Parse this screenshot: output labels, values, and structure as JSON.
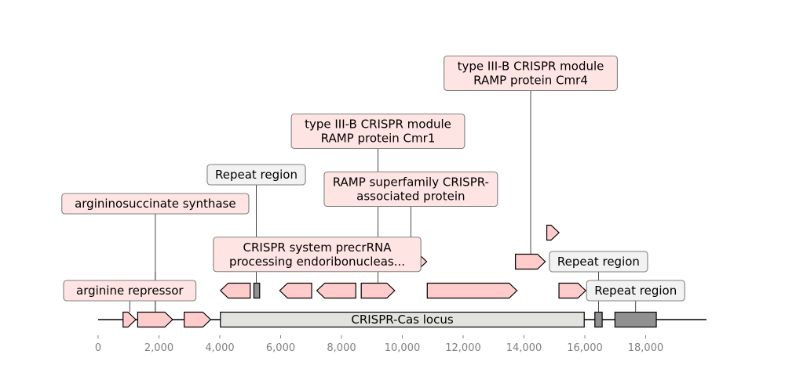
{
  "figure": {
    "locus_label": "CRISPR-Cas locus",
    "axis": {
      "min": 0,
      "max": 20000,
      "tick_values": [
        0,
        2000,
        4000,
        6000,
        8000,
        10000,
        12000,
        14000,
        16000,
        18000
      ]
    },
    "colors": {
      "cds_fill": "#ffcccc",
      "locus_fill": "#e2e2de",
      "repeat_fill": "#909090",
      "cds_label_bg": "#ffe4e4",
      "repeat_label_bg": "#f2f2f2",
      "label_border": "#808080",
      "stroke": "#000000",
      "tick_text": "#808080"
    },
    "features": [
      {
        "kind": "cds",
        "start": 820,
        "end": 1240,
        "strand": 1,
        "level": 0
      },
      {
        "kind": "cds",
        "start": 1300,
        "end": 2450,
        "strand": 1,
        "level": 0
      },
      {
        "kind": "cds",
        "start": 2830,
        "end": 3700,
        "strand": 1,
        "level": 0
      },
      {
        "kind": "locus",
        "start": 4020,
        "end": 15980,
        "strand": 0,
        "level": 0
      },
      {
        "kind": "repeat",
        "start": 16330,
        "end": 16570,
        "strand": 0,
        "level": 0
      },
      {
        "kind": "repeat",
        "start": 16990,
        "end": 18350,
        "strand": 0,
        "level": 0
      },
      {
        "kind": "cds",
        "start": 4020,
        "end": 5000,
        "strand": -1,
        "level": 1
      },
      {
        "kind": "repeat",
        "start": 5120,
        "end": 5310,
        "strand": 0,
        "level": 1
      },
      {
        "kind": "cds",
        "start": 5970,
        "end": 7020,
        "strand": -1,
        "level": 1
      },
      {
        "kind": "cds",
        "start": 7190,
        "end": 8470,
        "strand": -1,
        "level": 1
      },
      {
        "kind": "cds",
        "start": 8650,
        "end": 9750,
        "strand": 1,
        "level": 1
      },
      {
        "kind": "cds",
        "start": 10820,
        "end": 13770,
        "strand": 1,
        "level": 1
      },
      {
        "kind": "cds",
        "start": 15150,
        "end": 16030,
        "strand": 1,
        "level": 1
      },
      {
        "kind": "cds",
        "start": 9760,
        "end": 10800,
        "strand": 1,
        "level": 2
      },
      {
        "kind": "cds",
        "start": 13720,
        "end": 14700,
        "strand": 1,
        "level": 2
      },
      {
        "kind": "cds",
        "start": 14750,
        "end": 15150,
        "strand": 1,
        "level": 3
      }
    ],
    "labels": [
      {
        "lines": [
          "arginine repressor"
        ],
        "style": "cds",
        "anchor_x": 1040,
        "anchor_level": 0,
        "box_center_x": 1040,
        "box_center_level": 1
      },
      {
        "lines": [
          "CRISPR system precrRNA",
          "processing endoribonucleas..."
        ],
        "style": "cds",
        "anchor_x": 1880,
        "anchor_level": 0,
        "box_center_x": 7200,
        "box_center_level": 2.25
      },
      {
        "lines": [
          "argininosuccinate synthase"
        ],
        "style": "cds",
        "anchor_x": 1880,
        "anchor_level": 0,
        "box_center_x": 1880,
        "box_center_level": 4
      },
      {
        "lines": [
          "Repeat region"
        ],
        "style": "repeat",
        "anchor_x": 5200,
        "anchor_level": 1,
        "box_center_x": 5200,
        "box_center_level": 5
      },
      {
        "lines": [
          "type III-B CRISPR module",
          "RAMP protein Cmr1"
        ],
        "style": "cds",
        "anchor_x": 9200,
        "anchor_level": 1,
        "box_center_x": 9200,
        "box_center_level": 6.5
      },
      {
        "lines": [
          "RAMP superfamily CRISPR-",
          "associated protein"
        ],
        "style": "cds",
        "anchor_x": 10280,
        "anchor_level": 2,
        "box_center_x": 10280,
        "box_center_level": 4.5
      },
      {
        "lines": [
          "type III-B CRISPR module",
          "RAMP protein Cmr4"
        ],
        "style": "cds",
        "anchor_x": 14220,
        "anchor_level": 2,
        "box_center_x": 14220,
        "box_center_level": 8.5
      },
      {
        "lines": [
          "Repeat region"
        ],
        "style": "repeat",
        "anchor_x": 16450,
        "anchor_level": 0,
        "box_center_x": 16450,
        "box_center_level": 2
      },
      {
        "lines": [
          "Repeat region"
        ],
        "style": "repeat",
        "anchor_x": 17670,
        "anchor_level": 0,
        "box_center_x": 17670,
        "box_center_level": 1
      }
    ]
  }
}
